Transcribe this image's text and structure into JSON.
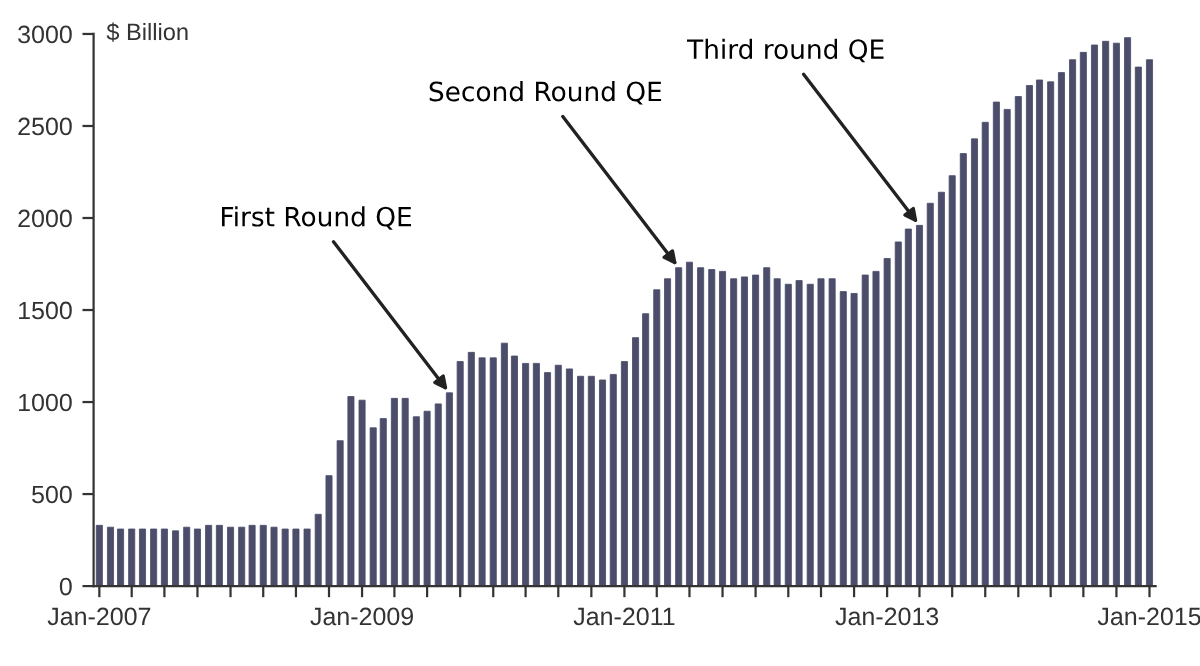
{
  "chart_data": {
    "type": "bar",
    "ylabel": "$ Billion",
    "x": [
      "2007-01",
      "2007-02",
      "2007-03",
      "2007-04",
      "2007-05",
      "2007-06",
      "2007-07",
      "2007-08",
      "2007-09",
      "2007-10",
      "2007-11",
      "2007-12",
      "2008-01",
      "2008-02",
      "2008-03",
      "2008-04",
      "2008-05",
      "2008-06",
      "2008-07",
      "2008-08",
      "2008-09",
      "2008-10",
      "2008-11",
      "2008-12",
      "2009-01",
      "2009-02",
      "2009-03",
      "2009-04",
      "2009-05",
      "2009-06",
      "2009-07",
      "2009-08",
      "2009-09",
      "2009-10",
      "2009-11",
      "2009-12",
      "2010-01",
      "2010-02",
      "2010-03",
      "2010-04",
      "2010-05",
      "2010-06",
      "2010-07",
      "2010-08",
      "2010-09",
      "2010-10",
      "2010-11",
      "2010-12",
      "2011-01",
      "2011-02",
      "2011-03",
      "2011-04",
      "2011-05",
      "2011-06",
      "2011-07",
      "2011-08",
      "2011-09",
      "2011-10",
      "2011-11",
      "2011-12",
      "2012-01",
      "2012-02",
      "2012-03",
      "2012-04",
      "2012-05",
      "2012-06",
      "2012-07",
      "2012-08",
      "2012-09",
      "2012-10",
      "2012-11",
      "2012-12",
      "2013-01",
      "2013-02",
      "2013-03",
      "2013-04",
      "2013-05",
      "2013-06",
      "2013-07",
      "2013-08",
      "2013-09",
      "2013-10",
      "2013-11",
      "2013-12",
      "2014-01",
      "2014-02",
      "2014-03",
      "2014-04",
      "2014-05",
      "2014-06",
      "2014-07",
      "2014-08",
      "2014-09",
      "2014-10",
      "2014-11",
      "2014-12",
      "2015-01"
    ],
    "values": [
      330,
      320,
      310,
      310,
      310,
      310,
      310,
      300,
      320,
      310,
      330,
      330,
      320,
      320,
      330,
      330,
      320,
      310,
      310,
      310,
      390,
      600,
      790,
      1030,
      1010,
      860,
      910,
      1020,
      1020,
      920,
      950,
      990,
      1050,
      1220,
      1270,
      1240,
      1240,
      1320,
      1250,
      1210,
      1210,
      1160,
      1200,
      1180,
      1140,
      1140,
      1120,
      1150,
      1220,
      1350,
      1480,
      1610,
      1670,
      1730,
      1760,
      1730,
      1720,
      1710,
      1670,
      1680,
      1690,
      1730,
      1670,
      1640,
      1660,
      1640,
      1670,
      1670,
      1600,
      1590,
      1690,
      1710,
      1780,
      1870,
      1940,
      1960,
      2080,
      2140,
      2230,
      2350,
      2430,
      2520,
      2630,
      2590,
      2660,
      2720,
      2750,
      2740,
      2790,
      2860,
      2900,
      2940,
      2960,
      2950,
      2980,
      2820,
      2860
    ],
    "color": "#4b4d6b",
    "xlim": [
      "2006-12-16",
      "2015-01-18"
    ],
    "xticks": [
      {
        "value": "2007-01",
        "label": "Jan-2007"
      },
      {
        "value": "2007-04",
        "label": null
      },
      {
        "value": "2007-07",
        "label": null
      },
      {
        "value": "2007-10",
        "label": null
      },
      {
        "value": "2008-01",
        "label": null
      },
      {
        "value": "2008-04",
        "label": null
      },
      {
        "value": "2008-07",
        "label": null
      },
      {
        "value": "2008-10",
        "label": null
      },
      {
        "value": "2009-01",
        "label": "Jan-2009"
      },
      {
        "value": "2009-04",
        "label": null
      },
      {
        "value": "2009-07",
        "label": null
      },
      {
        "value": "2009-10",
        "label": null
      },
      {
        "value": "2010-01",
        "label": null
      },
      {
        "value": "2010-04",
        "label": null
      },
      {
        "value": "2010-07",
        "label": null
      },
      {
        "value": "2010-10",
        "label": null
      },
      {
        "value": "2011-01",
        "label": "Jan-2011"
      },
      {
        "value": "2011-04",
        "label": null
      },
      {
        "value": "2011-07",
        "label": null
      },
      {
        "value": "2011-10",
        "label": null
      },
      {
        "value": "2012-01",
        "label": null
      },
      {
        "value": "2012-04",
        "label": null
      },
      {
        "value": "2012-07",
        "label": null
      },
      {
        "value": "2012-10",
        "label": null
      },
      {
        "value": "2013-01",
        "label": "Jan-2013"
      },
      {
        "value": "2013-04",
        "label": null
      },
      {
        "value": "2013-07",
        "label": null
      },
      {
        "value": "2013-10",
        "label": null
      },
      {
        "value": "2014-01",
        "label": null
      },
      {
        "value": "2014-04",
        "label": null
      },
      {
        "value": "2014-07",
        "label": null
      },
      {
        "value": "2014-10",
        "label": null
      },
      {
        "value": "2015-01",
        "label": "Jan-2015"
      }
    ],
    "ylim": [
      0,
      3000
    ],
    "yticks": [
      0,
      500,
      1000,
      1500,
      2000,
      2500,
      3000
    ],
    "grid": false,
    "legend": false,
    "annotations": [
      {
        "text": "First Round QE",
        "x": "2009-09",
        "y": 1050
      },
      {
        "text": "Second Round QE",
        "x": "2011-06",
        "y": 1730
      },
      {
        "text": "Third round QE",
        "x": "2013-04",
        "y": 1960
      }
    ]
  }
}
